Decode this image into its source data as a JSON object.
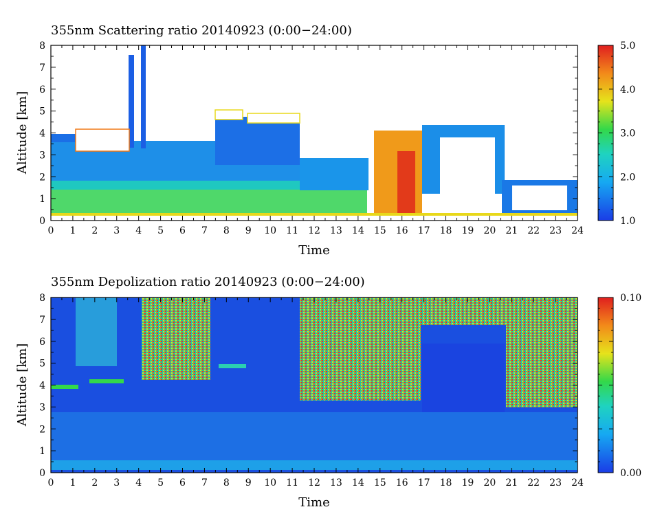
{
  "chart_data": [
    {
      "type": "heatmap",
      "title": "355nm Scattering ratio  20140923 (0:00−24:00)",
      "xlabel": "Time",
      "ylabel": "Altitude [km]",
      "xlim": [
        0,
        24
      ],
      "ylim": [
        0,
        8
      ],
      "x_ticks": [
        "0",
        "1",
        "2",
        "3",
        "4",
        "5",
        "6",
        "7",
        "8",
        "9",
        "10",
        "11",
        "12",
        "13",
        "14",
        "15",
        "16",
        "17",
        "18",
        "19",
        "20",
        "21",
        "22",
        "23",
        "24"
      ],
      "y_ticks": [
        "0",
        "1",
        "2",
        "3",
        "4",
        "5",
        "6",
        "7",
        "8"
      ],
      "colorbar": {
        "min": 1.0,
        "max": 5.0,
        "tick_labels": [
          "1.0",
          "2.0",
          "3.0",
          "4.0",
          "5.0"
        ]
      },
      "colors": {
        "low": "#1a4fe0",
        "mid_low": "#19b8f0",
        "mid": "#22d36a",
        "mid_high": "#e8e21c",
        "high": "#e8261a",
        "no_data": "#ffffff"
      }
    },
    {
      "type": "heatmap",
      "title": "355nm Depolization ratio  20140923 (0:00−24:00)",
      "xlabel": "Time",
      "ylabel": "Altitude [km]",
      "xlim": [
        0,
        24
      ],
      "ylim": [
        0,
        8
      ],
      "x_ticks": [
        "0",
        "1",
        "2",
        "3",
        "4",
        "5",
        "6",
        "7",
        "8",
        "9",
        "10",
        "11",
        "12",
        "13",
        "14",
        "15",
        "16",
        "17",
        "18",
        "19",
        "20",
        "21",
        "22",
        "23",
        "24"
      ],
      "y_ticks": [
        "0",
        "1",
        "2",
        "3",
        "4",
        "5",
        "6",
        "7",
        "8"
      ],
      "colorbar": {
        "min": 0.0,
        "max": 0.1,
        "tick_labels": [
          "0.00",
          "0.10"
        ]
      },
      "colors": {
        "low": "#1a4fe0",
        "mid_low": "#19b8f0",
        "mid": "#22d36a",
        "mid_high": "#e8e21c",
        "high": "#e8261a"
      }
    }
  ]
}
